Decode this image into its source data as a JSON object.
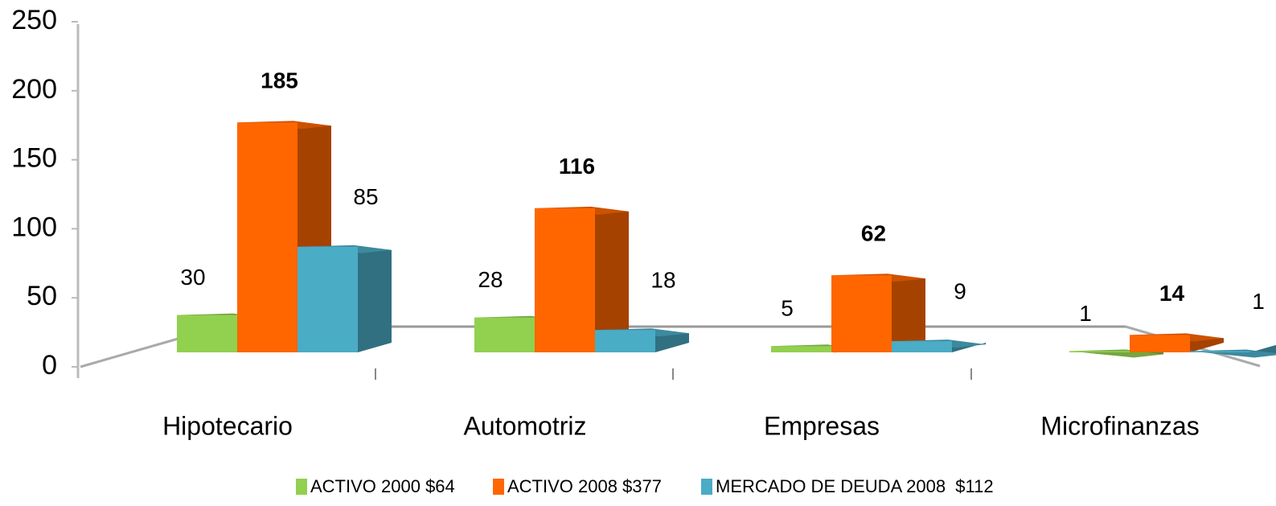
{
  "chart_data": {
    "type": "bar",
    "categories": [
      "Hipotecario",
      "Automotriz",
      "Empresas",
      "Microfinanzas"
    ],
    "series": [
      {
        "name": "ACTIVO 2000 $64",
        "color": "#92d050",
        "values": [
          30,
          28,
          5,
          1
        ]
      },
      {
        "name": "ACTIVO 2008 $377",
        "color": "#ff6600",
        "values": [
          185,
          116,
          62,
          14
        ]
      },
      {
        "name": "MERCADO DE DEUDA 2008  $112",
        "color": "#4bacc6",
        "values": [
          85,
          18,
          9,
          1
        ]
      }
    ],
    "ylim": [
      0,
      250
    ],
    "yticks": [
      0,
      50,
      100,
      150,
      200,
      250
    ],
    "legend": "bottom"
  }
}
